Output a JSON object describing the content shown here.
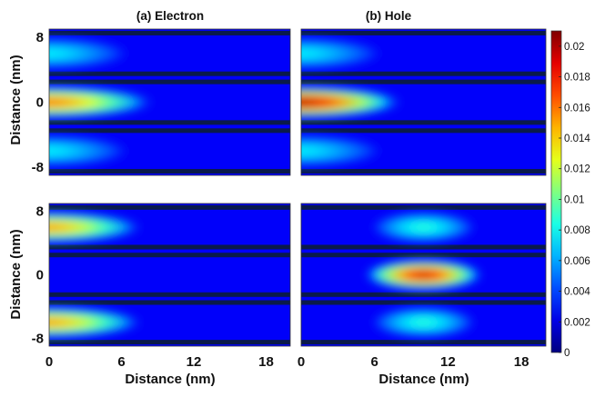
{
  "chart_data": {
    "type": "heatmap",
    "panel_titles": {
      "electron": "(a) Electron",
      "hole": "(b) Hole"
    },
    "xlabel": "Distance (nm)",
    "ylabel": "Distance (nm)",
    "x_ticks": [
      "0",
      "6",
      "12",
      "18"
    ],
    "x_tick_values": [
      0,
      6,
      12,
      18
    ],
    "y_ticks": [
      "8",
      "0",
      "-8"
    ],
    "y_tick_values": [
      8,
      0,
      -8
    ],
    "xlim": [
      0,
      20
    ],
    "ylim": [
      -9,
      9
    ],
    "colormap": "jet",
    "colorbar": {
      "range": [
        0,
        0.021
      ],
      "ticks": [
        "0.02",
        "0.018",
        "0.016",
        "0.014",
        "0.012",
        "0.01",
        "0.008",
        "0.006",
        "0.004",
        "0.002",
        "0"
      ],
      "tick_values": [
        0.02,
        0.018,
        0.016,
        0.014,
        0.012,
        0.01,
        0.008,
        0.006,
        0.004,
        0.002,
        0
      ]
    },
    "wells_nm": [
      [
        3.5,
        8.5
      ],
      [
        -2.5,
        2.5
      ],
      [
        -8.5,
        -3.5
      ]
    ],
    "panels": [
      {
        "row": 0,
        "col": "electron",
        "blobs": [
          {
            "well": 0,
            "center_x_nm": 0,
            "width_x_nm": 7,
            "peak": 0.008
          },
          {
            "well": 1,
            "center_x_nm": 0,
            "width_x_nm": 9,
            "peak": 0.017
          },
          {
            "well": 2,
            "center_x_nm": 0,
            "width_x_nm": 7,
            "peak": 0.008
          }
        ]
      },
      {
        "row": 0,
        "col": "hole",
        "blobs": [
          {
            "well": 0,
            "center_x_nm": 0,
            "width_x_nm": 7,
            "peak": 0.008
          },
          {
            "well": 1,
            "center_x_nm": 0,
            "width_x_nm": 8.5,
            "peak": 0.021
          },
          {
            "well": 2,
            "center_x_nm": 0,
            "width_x_nm": 7,
            "peak": 0.008
          }
        ]
      },
      {
        "row": 1,
        "col": "electron",
        "blobs": [
          {
            "well": 0,
            "center_x_nm": 0,
            "width_x_nm": 8,
            "peak": 0.016
          },
          {
            "well": 1,
            "center_x_nm": 0,
            "width_x_nm": 8,
            "peak": 0.0
          },
          {
            "well": 2,
            "center_x_nm": 0,
            "width_x_nm": 8,
            "peak": 0.016
          }
        ]
      },
      {
        "row": 1,
        "col": "hole",
        "blobs": [
          {
            "well": 0,
            "center_x_nm": 10,
            "width_x_nm": 4.5,
            "peak": 0.009
          },
          {
            "well": 1,
            "center_x_nm": 10,
            "width_x_nm": 5,
            "peak": 0.02
          },
          {
            "well": 2,
            "center_x_nm": 10,
            "width_x_nm": 4.5,
            "peak": 0.009
          }
        ]
      }
    ]
  }
}
